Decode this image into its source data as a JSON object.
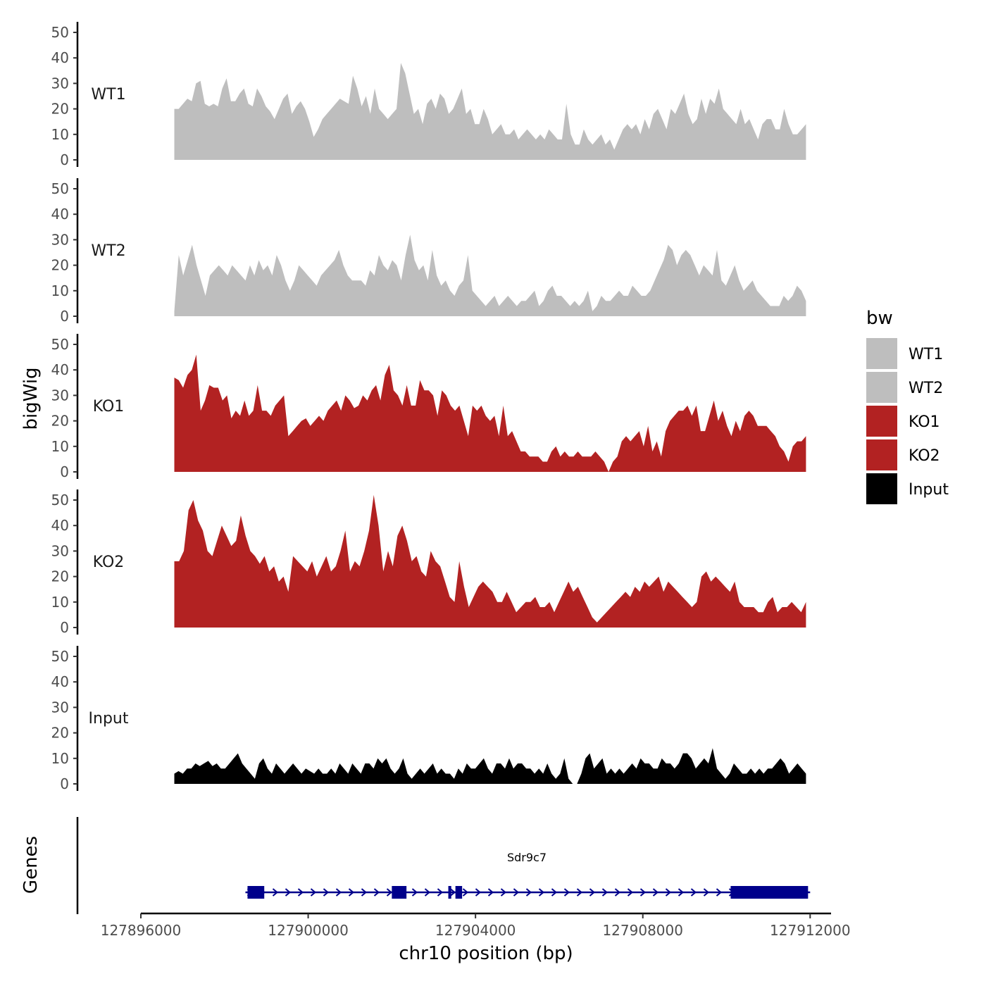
{
  "chart_data": {
    "type": "area",
    "ylabel": "bigWig",
    "xlabel": "chr10 position (bp)",
    "ylim": [
      0,
      54
    ],
    "yticks": [
      0,
      10,
      20,
      30,
      40,
      50
    ],
    "xlim": [
      127896000,
      127912500
    ],
    "xticks": [
      127896000,
      127900000,
      127904000,
      127908000,
      127912000
    ],
    "xtick_labels": [
      "127896000",
      "127900000",
      "127904000",
      "127908000",
      "127912000"
    ],
    "x_start": 127896800,
    "x_end": 127911900,
    "legend": {
      "title": "bw",
      "position": "right",
      "entries": [
        {
          "label": "WT1",
          "color": "#bebebe"
        },
        {
          "label": "WT2",
          "color": "#bebebe"
        },
        {
          "label": "KO1",
          "color": "#b22222"
        },
        {
          "label": "KO2",
          "color": "#b22222"
        },
        {
          "label": "Input",
          "color": "#000000"
        }
      ]
    },
    "series": [
      {
        "name": "WT1",
        "color": "#bebebe",
        "values": [
          20,
          20,
          22,
          24,
          23,
          30,
          31,
          22,
          21,
          22,
          21,
          28,
          32,
          23,
          23,
          26,
          28,
          22,
          21,
          28,
          25,
          21,
          19,
          16,
          20,
          24,
          26,
          18,
          21,
          23,
          20,
          15,
          9,
          12,
          16,
          18,
          20,
          22,
          24,
          23,
          22,
          33,
          28,
          21,
          25,
          18,
          28,
          20,
          18,
          16,
          18,
          20,
          38,
          34,
          26,
          18,
          20,
          14,
          22,
          24,
          20,
          26,
          24,
          18,
          20,
          24,
          28,
          18,
          20,
          14,
          14,
          20,
          16,
          10,
          12,
          14,
          10,
          10,
          12,
          8,
          10,
          12,
          10,
          8,
          10,
          8,
          12,
          10,
          8,
          8,
          22,
          10,
          6,
          6,
          12,
          8,
          6,
          8,
          10,
          6,
          8,
          4,
          8,
          12,
          14,
          12,
          14,
          10,
          16,
          12,
          18,
          20,
          16,
          12,
          20,
          18,
          22,
          26,
          18,
          14,
          16,
          24,
          18,
          24,
          22,
          28,
          20,
          18,
          16,
          14,
          20,
          14,
          16,
          12,
          8,
          14,
          16,
          16,
          12,
          12,
          20,
          14,
          10,
          10,
          12,
          14
        ]
      },
      {
        "name": "WT2",
        "color": "#bebebe",
        "values": [
          2,
          24,
          16,
          22,
          28,
          20,
          14,
          8,
          16,
          18,
          20,
          18,
          16,
          20,
          18,
          16,
          14,
          20,
          16,
          22,
          18,
          20,
          16,
          24,
          20,
          14,
          10,
          14,
          20,
          18,
          16,
          14,
          12,
          16,
          18,
          20,
          22,
          26,
          20,
          16,
          14,
          14,
          14,
          12,
          18,
          16,
          24,
          20,
          18,
          22,
          20,
          14,
          24,
          32,
          22,
          18,
          20,
          14,
          26,
          16,
          12,
          14,
          10,
          8,
          12,
          14,
          24,
          10,
          8,
          6,
          4,
          6,
          8,
          4,
          6,
          8,
          6,
          4,
          6,
          6,
          8,
          10,
          4,
          6,
          10,
          12,
          8,
          8,
          6,
          4,
          6,
          4,
          6,
          10,
          2,
          4,
          8,
          6,
          6,
          8,
          10,
          8,
          8,
          12,
          10,
          8,
          8,
          10,
          14,
          18,
          22,
          28,
          26,
          20,
          24,
          26,
          24,
          20,
          16,
          20,
          18,
          16,
          26,
          14,
          12,
          16,
          20,
          14,
          10,
          12,
          14,
          10,
          8,
          6,
          4,
          4,
          4,
          8,
          6,
          8,
          12,
          10,
          6
        ]
      },
      {
        "name": "KO1",
        "color": "#b22222",
        "values": [
          37,
          36,
          33,
          38,
          40,
          46,
          24,
          28,
          34,
          33,
          33,
          28,
          30,
          21,
          24,
          22,
          28,
          22,
          24,
          34,
          24,
          24,
          22,
          26,
          28,
          30,
          14,
          16,
          18,
          20,
          21,
          18,
          20,
          22,
          20,
          24,
          26,
          28,
          24,
          30,
          28,
          25,
          26,
          30,
          28,
          32,
          34,
          28,
          38,
          42,
          32,
          30,
          26,
          34,
          26,
          26,
          36,
          32,
          32,
          30,
          22,
          32,
          30,
          26,
          24,
          26,
          20,
          14,
          26,
          24,
          26,
          22,
          20,
          22,
          14,
          26,
          14,
          16,
          12,
          8,
          8,
          6,
          6,
          6,
          4,
          4,
          8,
          10,
          6,
          8,
          6,
          6,
          8,
          6,
          6,
          6,
          8,
          6,
          4,
          0,
          4,
          6,
          12,
          14,
          12,
          14,
          16,
          10,
          18,
          8,
          12,
          6,
          16,
          20,
          22,
          24,
          24,
          26,
          22,
          26,
          16,
          16,
          22,
          28,
          20,
          24,
          18,
          14,
          20,
          16,
          22,
          24,
          22,
          18,
          18,
          18,
          16,
          14,
          10,
          8,
          4,
          10,
          12,
          12,
          14
        ]
      },
      {
        "name": "KO2",
        "color": "#b22222",
        "values": [
          26,
          26,
          30,
          46,
          50,
          42,
          38,
          30,
          28,
          34,
          40,
          36,
          32,
          34,
          44,
          36,
          30,
          28,
          25,
          28,
          22,
          24,
          18,
          20,
          14,
          28,
          26,
          24,
          22,
          26,
          20,
          24,
          28,
          22,
          24,
          30,
          38,
          22,
          26,
          24,
          30,
          38,
          52,
          40,
          22,
          30,
          24,
          36,
          40,
          34,
          26,
          28,
          22,
          20,
          30,
          26,
          24,
          18,
          12,
          10,
          26,
          16,
          8,
          12,
          16,
          18,
          16,
          14,
          10,
          10,
          14,
          10,
          6,
          8,
          10,
          10,
          12,
          8,
          8,
          10,
          6,
          10,
          14,
          18,
          14,
          16,
          12,
          8,
          4,
          2,
          4,
          6,
          8,
          10,
          12,
          14,
          12,
          16,
          14,
          18,
          16,
          18,
          20,
          14,
          18,
          16,
          14,
          12,
          10,
          8,
          10,
          20,
          22,
          18,
          20,
          18,
          16,
          14,
          18,
          10,
          8,
          8,
          8,
          6,
          6,
          10,
          12,
          6,
          8,
          8,
          10,
          8,
          6,
          10
        ]
      },
      {
        "name": "Input",
        "color": "#000000",
        "values": [
          4,
          5,
          4,
          6,
          6,
          8,
          7,
          8,
          9,
          7,
          8,
          6,
          6,
          8,
          10,
          12,
          8,
          6,
          4,
          2,
          8,
          10,
          6,
          4,
          8,
          6,
          4,
          6,
          8,
          6,
          4,
          6,
          5,
          4,
          6,
          4,
          4,
          6,
          4,
          8,
          6,
          4,
          8,
          6,
          4,
          8,
          8,
          6,
          10,
          8,
          10,
          6,
          4,
          6,
          10,
          4,
          2,
          4,
          6,
          4,
          6,
          8,
          4,
          6,
          4,
          4,
          2,
          6,
          4,
          8,
          6,
          6,
          8,
          10,
          6,
          4,
          8,
          8,
          6,
          10,
          6,
          8,
          8,
          6,
          6,
          4,
          6,
          4,
          8,
          4,
          2,
          4,
          10,
          2,
          0,
          0,
          4,
          10,
          12,
          6,
          8,
          10,
          4,
          6,
          4,
          6,
          4,
          6,
          8,
          6,
          10,
          8,
          8,
          6,
          6,
          10,
          8,
          8,
          6,
          8,
          12,
          12,
          10,
          6,
          8,
          10,
          8,
          14,
          6,
          4,
          2,
          4,
          8,
          6,
          4,
          4,
          6,
          4,
          6,
          4,
          6,
          6,
          8,
          10,
          8,
          4,
          6,
          8,
          6,
          4
        ]
      }
    ],
    "genes": {
      "track_label": "Genes",
      "name": "Sdr9c7",
      "color": "#00008b",
      "start": 127898500,
      "end": 127912000,
      "strand": "+",
      "exons": [
        {
          "start": 127898550,
          "end": 127898950
        },
        {
          "start": 127902000,
          "end": 127902350
        },
        {
          "start": 127903350,
          "end": 127903420
        },
        {
          "start": 127903520,
          "end": 127903680
        },
        {
          "start": 127910100,
          "end": 127911950
        }
      ]
    }
  }
}
